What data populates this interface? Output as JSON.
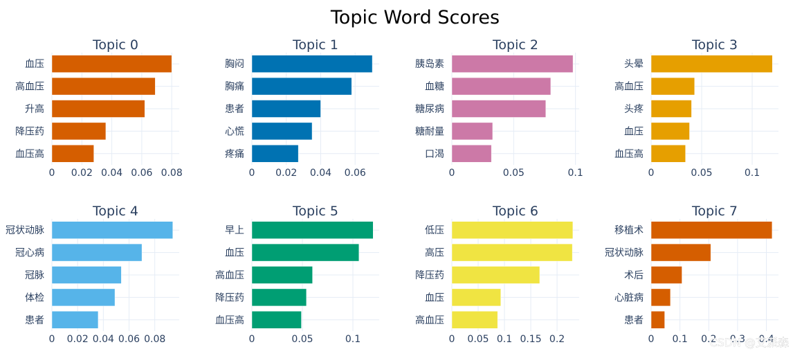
{
  "title": "Topic Word Scores",
  "watermark": "CSDN @艾派森",
  "chart_data": [
    {
      "type": "bar",
      "orientation": "horizontal",
      "title": "Topic 0",
      "color": "#D55E00",
      "categories": [
        "血压",
        "高血压",
        "升高",
        "降压药",
        "血压高"
      ],
      "values": [
        0.08,
        0.069,
        0.062,
        0.036,
        0.028
      ],
      "xlim": [
        0,
        0.085
      ],
      "xticks": [
        0,
        0.02,
        0.04,
        0.06,
        0.08
      ],
      "xtick_labels": [
        "0",
        "0.02",
        "0.04",
        "0.06",
        "0.08"
      ],
      "grid": true
    },
    {
      "type": "bar",
      "orientation": "horizontal",
      "title": "Topic 1",
      "color": "#0072B2",
      "categories": [
        "胸闷",
        "胸痛",
        "患者",
        "心慌",
        "疼痛"
      ],
      "values": [
        0.07,
        0.058,
        0.04,
        0.035,
        0.027
      ],
      "xlim": [
        0,
        0.074
      ],
      "xticks": [
        0,
        0.02,
        0.04,
        0.06
      ],
      "xtick_labels": [
        "0",
        "0.02",
        "0.04",
        "0.06"
      ],
      "grid": true
    },
    {
      "type": "bar",
      "orientation": "horizontal",
      "title": "Topic 2",
      "color": "#CC79A7",
      "categories": [
        "胰岛素",
        "血糖",
        "糖尿病",
        "糖耐量",
        "口渴"
      ],
      "values": [
        0.098,
        0.08,
        0.076,
        0.033,
        0.032
      ],
      "xlim": [
        0,
        0.103
      ],
      "xticks": [
        0,
        0.05,
        0.1
      ],
      "xtick_labels": [
        "0",
        "0.05",
        "0.1"
      ],
      "grid": true
    },
    {
      "type": "bar",
      "orientation": "horizontal",
      "title": "Topic 3",
      "color": "#E69F00",
      "categories": [
        "头晕",
        "高血压",
        "头疼",
        "血压",
        "血压高"
      ],
      "values": [
        0.12,
        0.043,
        0.04,
        0.038,
        0.034
      ],
      "xlim": [
        0,
        0.126
      ],
      "xticks": [
        0,
        0.05,
        0.1
      ],
      "xtick_labels": [
        "0",
        "0.05",
        "0.1"
      ],
      "grid": true
    },
    {
      "type": "bar",
      "orientation": "horizontal",
      "title": "Topic 4",
      "color": "#56B4E9",
      "categories": [
        "冠状动脉",
        "冠心病",
        "冠脉",
        "体检",
        "患者"
      ],
      "values": [
        0.094,
        0.07,
        0.054,
        0.049,
        0.036
      ],
      "xlim": [
        0,
        0.099
      ],
      "xticks": [
        0,
        0.02,
        0.04,
        0.06,
        0.08
      ],
      "xtick_labels": [
        "0",
        "0.02",
        "0.04",
        "0.06",
        "0.08"
      ],
      "grid": true
    },
    {
      "type": "bar",
      "orientation": "horizontal",
      "title": "Topic 5",
      "color": "#009E73",
      "categories": [
        "早上",
        "血压",
        "高血压",
        "降压药",
        "血压高"
      ],
      "values": [
        0.12,
        0.106,
        0.06,
        0.054,
        0.049
      ],
      "xlim": [
        0,
        0.126
      ],
      "xticks": [
        0,
        0.05,
        0.1
      ],
      "xtick_labels": [
        "0",
        "0.05",
        "0.1"
      ],
      "grid": true
    },
    {
      "type": "bar",
      "orientation": "horizontal",
      "title": "Topic 6",
      "color": "#F0E442",
      "categories": [
        "低压",
        "高压",
        "降压药",
        "血压",
        "高血压"
      ],
      "values": [
        0.23,
        0.229,
        0.167,
        0.093,
        0.087
      ],
      "xlim": [
        0,
        0.242
      ],
      "xticks": [
        0,
        0.05,
        0.1,
        0.15,
        0.2
      ],
      "xtick_labels": [
        "0",
        "0.05",
        "0.1",
        "0.15",
        "0.2"
      ],
      "grid": true
    },
    {
      "type": "bar",
      "orientation": "horizontal",
      "title": "Topic 7",
      "color": "#D55E00",
      "categories": [
        "移植术",
        "冠状动脉",
        "术后",
        "心脏病",
        "患者"
      ],
      "values": [
        0.42,
        0.207,
        0.107,
        0.067,
        0.047
      ],
      "xlim": [
        0,
        0.442
      ],
      "xticks": [
        0,
        0.1,
        0.2,
        0.3,
        0.4
      ],
      "xtick_labels": [
        "0",
        "0.1",
        "0.2",
        "0.3",
        "0.4"
      ],
      "grid": true
    }
  ]
}
